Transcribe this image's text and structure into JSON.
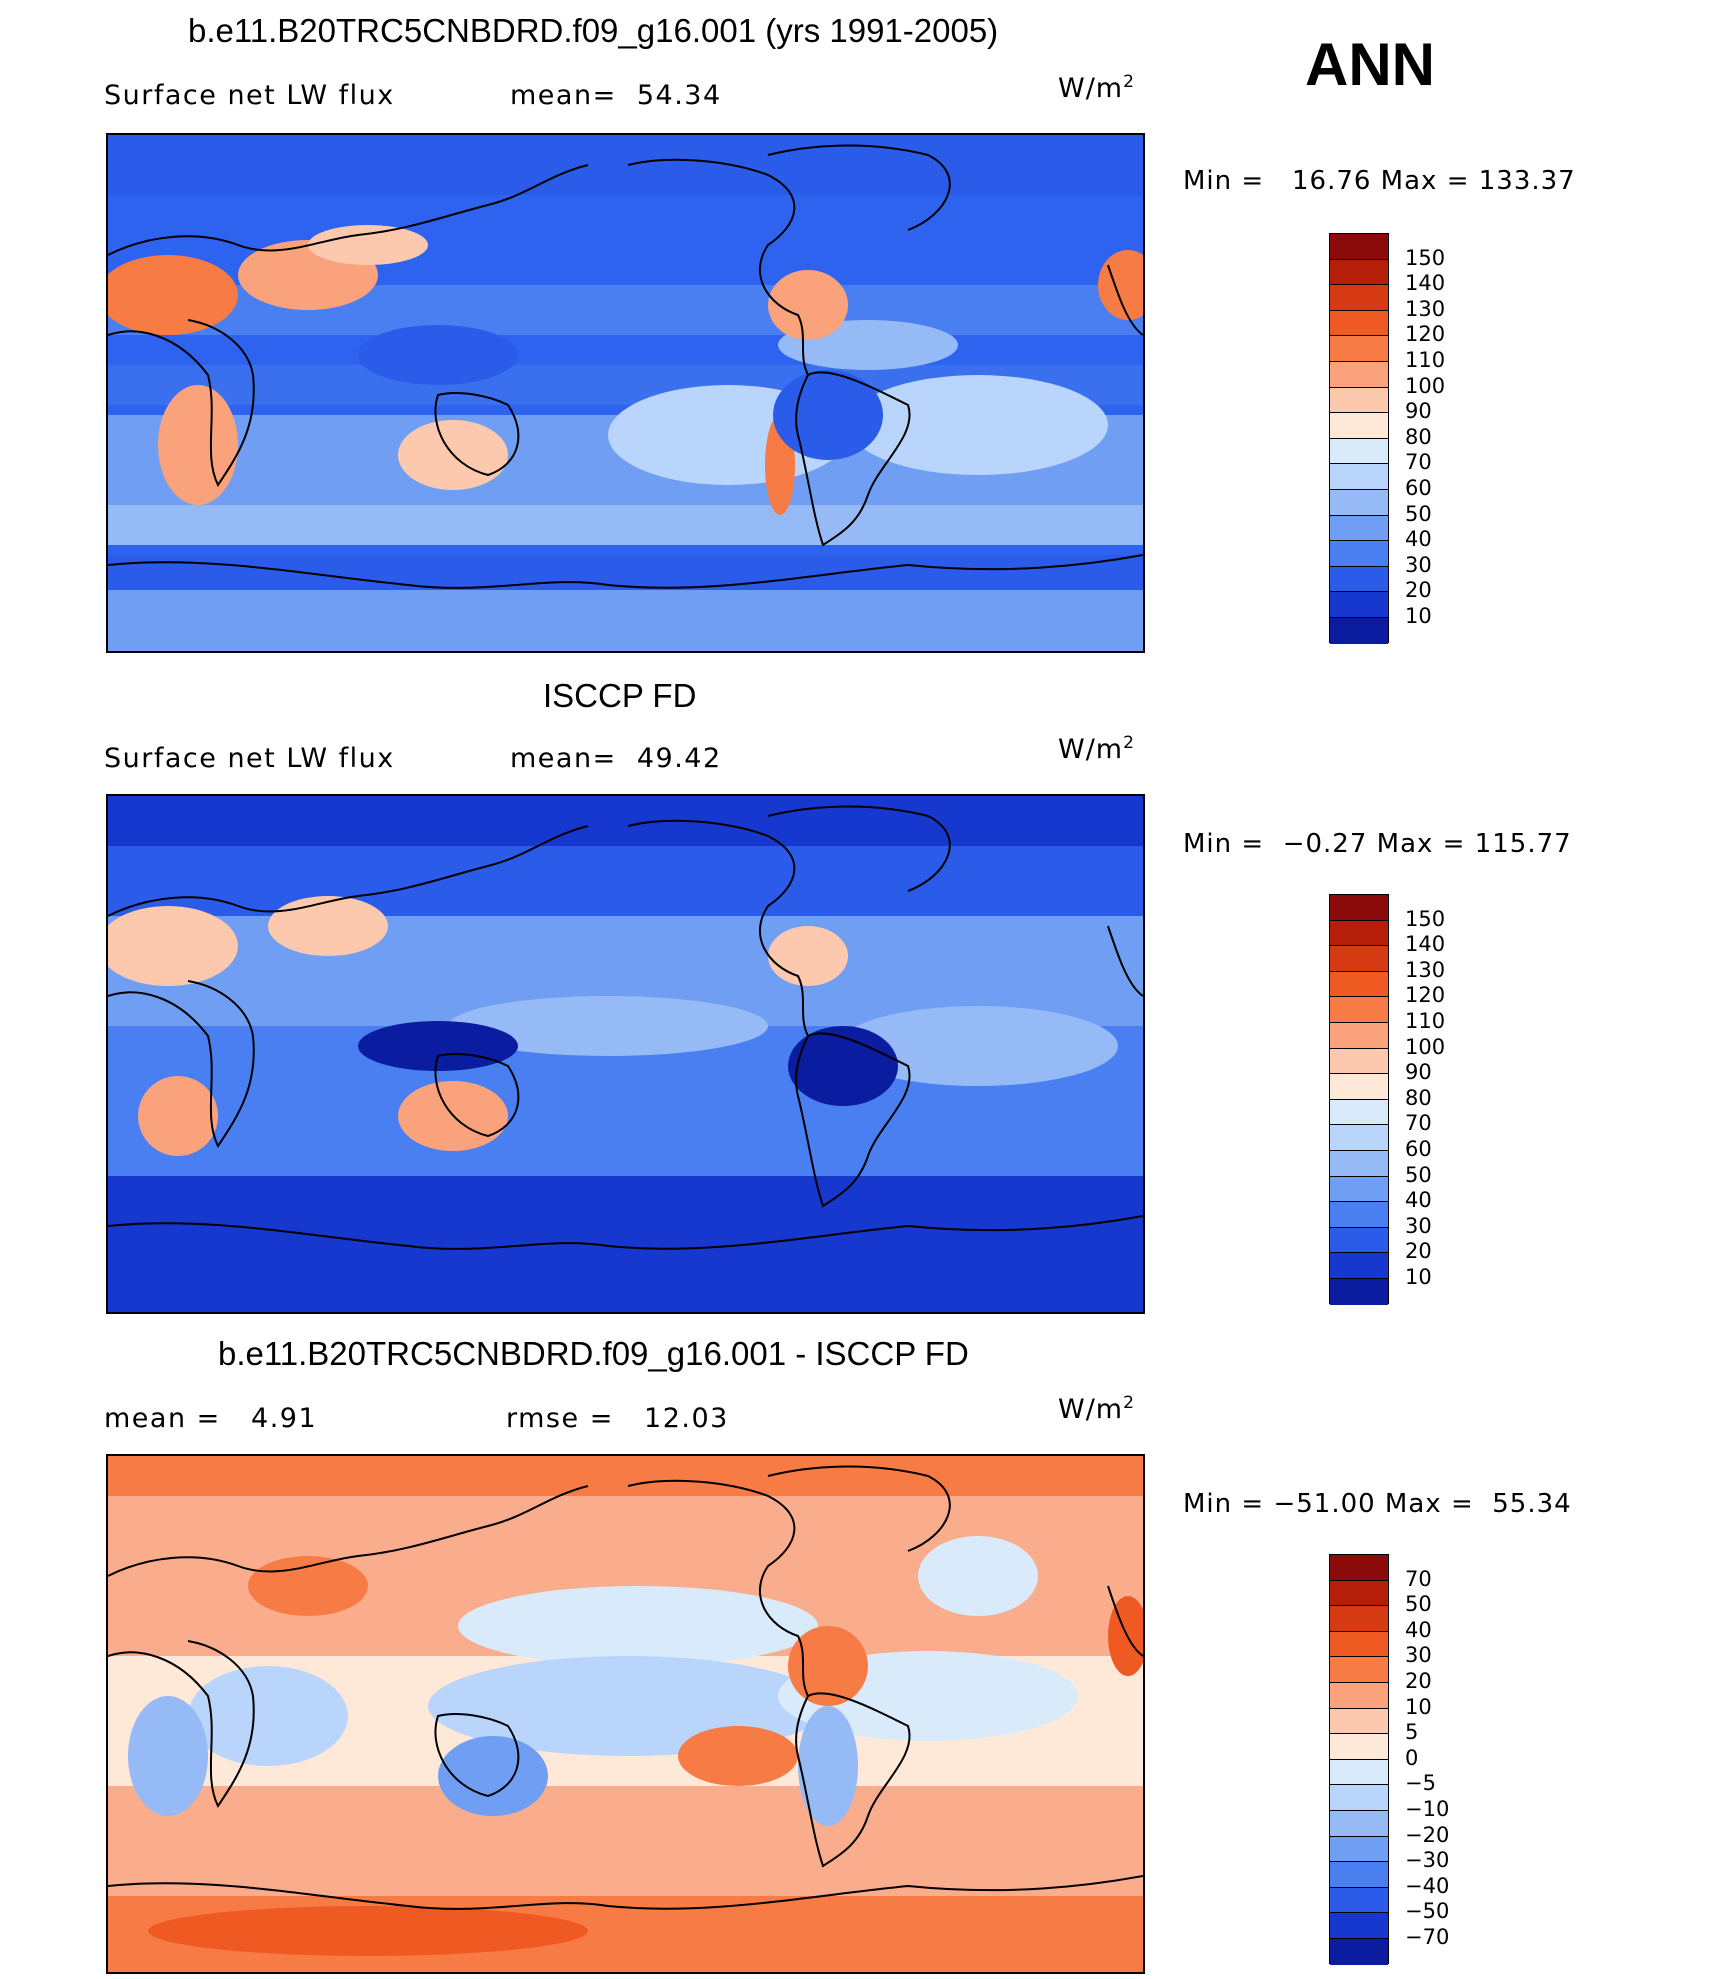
{
  "panels": [
    {
      "title": "b.e11.B20TRC5CNBDRD.f09_g16.001 (yrs 1991-2005)",
      "left_text": "Surface net LW flux",
      "mid_text": "mean=  54.34",
      "units": "W/m",
      "units_sup": "2",
      "minmax": "Min =   16.76 Max = 133.37",
      "colorbar_labels": [
        "150",
        "140",
        "130",
        "120",
        "110",
        "100",
        "90",
        "80",
        "70",
        "60",
        "50",
        "40",
        "30",
        "20",
        "10"
      ],
      "colorbar_colors": [
        "#8b0a0a",
        "#b51f0a",
        "#d63a12",
        "#ef5a22",
        "#f77b45",
        "#f9a27c",
        "#fcc9ae",
        "#fee9d9",
        "#d9ebfb",
        "#b9d5fb",
        "#96baf6",
        "#6f9ef3",
        "#4a7ff1",
        "#2a5ce9",
        "#1638cf",
        "#0a1c9f"
      ],
      "map_base": "#2e63ef"
    },
    {
      "title": "ISCCP FD",
      "left_text": "Surface net LW flux",
      "mid_text": "mean=  49.42",
      "units": "W/m",
      "units_sup": "2",
      "minmax": "Min =  −0.27 Max = 115.77",
      "colorbar_labels": [
        "150",
        "140",
        "130",
        "120",
        "110",
        "100",
        "90",
        "80",
        "70",
        "60",
        "50",
        "40",
        "30",
        "20",
        "10"
      ],
      "colorbar_colors": [
        "#8b0a0a",
        "#b51f0a",
        "#d63a12",
        "#ef5a22",
        "#f77b45",
        "#f9a27c",
        "#fcc9ae",
        "#fee9d9",
        "#d9ebfb",
        "#b9d5fb",
        "#96baf6",
        "#6f9ef3",
        "#4a7ff1",
        "#2a5ce9",
        "#1638cf",
        "#0a1c9f"
      ],
      "map_base": "#2a5ce9"
    },
    {
      "title": "b.e11.B20TRC5CNBDRD.f09_g16.001 - ISCCP FD",
      "left_text": "mean =   4.91",
      "mid_text": "rmse =   12.03",
      "units": "W/m",
      "units_sup": "2",
      "minmax": "Min = −51.00 Max =  55.34",
      "colorbar_labels": [
        "70",
        "50",
        "40",
        "30",
        "20",
        "10",
        "5",
        "0",
        "−5",
        "−10",
        "−20",
        "−30",
        "−40",
        "−50",
        "−70"
      ],
      "colorbar_colors": [
        "#8b0a0a",
        "#b51f0a",
        "#d63a12",
        "#ef5a22",
        "#f77b45",
        "#f9a27c",
        "#fcc9ae",
        "#fee9d9",
        "#d9ebfb",
        "#b9d5fb",
        "#96baf6",
        "#6f9ef3",
        "#4a7ff1",
        "#2a5ce9",
        "#1638cf",
        "#0a1c9f"
      ],
      "map_base": "#f9ad8c"
    }
  ],
  "season": "ANN"
}
